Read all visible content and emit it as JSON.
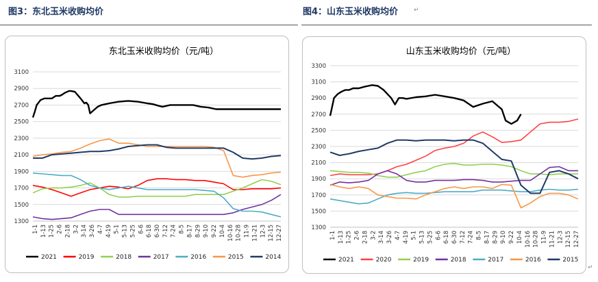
{
  "captions": {
    "left": "图3：东北玉米收购均价",
    "right": "图4：山东玉米收购均价",
    "return_mark": "↵"
  },
  "chart_data": [
    {
      "type": "line",
      "title": "东北玉米收购均价（元/吨）",
      "ylim": [
        1300,
        3100
      ],
      "yticks": [
        1300,
        1500,
        1700,
        1900,
        2100,
        2300,
        2500,
        2700,
        2900,
        3100
      ],
      "x_labels": [
        "1-1",
        "1-13",
        "1-25",
        "2-6",
        "2-18",
        "3-2",
        "3-14",
        "3-26",
        "4-7",
        "4-19",
        "5-1",
        "5-13",
        "5-25",
        "6-6",
        "6-18",
        "6-30",
        "7-12",
        "7-24",
        "8-5",
        "8-17",
        "8-29",
        "9-10",
        "9-22",
        "10-4",
        "10-16",
        "10-28",
        "11-9",
        "11-21",
        "12-3",
        "12-15",
        "12-27"
      ],
      "grid": true,
      "legend_position": "bottom",
      "series": [
        {
          "name": "2021",
          "color": "#000000",
          "width": 2.4,
          "x": [
            0,
            1,
            2,
            3,
            4,
            6,
            8,
            10,
            12,
            14,
            15,
            17,
            19,
            20,
            22,
            25,
            27,
            28,
            29,
            30,
            34,
            36,
            38,
            40,
            45,
            50,
            55,
            60,
            63,
            66,
            68,
            72,
            76,
            80,
            84,
            88,
            92,
            96,
            100,
            104,
            108,
            112,
            116,
            120,
            124,
            128,
            130
          ],
          "y": [
            2550,
            2620,
            2700,
            2730,
            2760,
            2780,
            2780,
            2780,
            2810,
            2810,
            2820,
            2850,
            2870,
            2870,
            2860,
            2780,
            2720,
            2730,
            2700,
            2600,
            2680,
            2700,
            2710,
            2720,
            2740,
            2750,
            2740,
            2720,
            2710,
            2690,
            2680,
            2700,
            2700,
            2700,
            2700,
            2680,
            2670,
            2650,
            2650,
            2650,
            2650,
            2650,
            2650,
            2650,
            2650,
            2650,
            2650
          ]
        },
        {
          "name": "2019",
          "color": "#ff0000",
          "width": 1.6,
          "x": [
            0,
            5,
            10,
            15,
            20,
            25,
            30,
            35,
            40,
            45,
            50,
            55,
            60,
            65,
            70,
            75,
            80,
            85,
            90,
            95,
            100,
            105,
            110,
            115,
            120,
            125,
            130
          ],
          "y": [
            1730,
            1710,
            1680,
            1640,
            1600,
            1640,
            1680,
            1700,
            1720,
            1710,
            1690,
            1730,
            1790,
            1810,
            1810,
            1800,
            1800,
            1790,
            1790,
            1770,
            1750,
            1680,
            1680,
            1690,
            1690,
            1690,
            1700
          ]
        },
        {
          "name": "2018",
          "color": "#92d050",
          "width": 1.6,
          "x": [
            0,
            5,
            10,
            15,
            20,
            25,
            30,
            35,
            40,
            45,
            50,
            55,
            60,
            65,
            70,
            75,
            80,
            85,
            90,
            95,
            100,
            105,
            110,
            115,
            120,
            125,
            130
          ],
          "y": [
            1640,
            1690,
            1700,
            1700,
            1710,
            1730,
            1760,
            1700,
            1620,
            1590,
            1590,
            1600,
            1600,
            1600,
            1600,
            1600,
            1600,
            1620,
            1620,
            1620,
            1620,
            1660,
            1700,
            1750,
            1800,
            1780,
            1740
          ]
        },
        {
          "name": "2017",
          "color": "#7030a0",
          "width": 1.6,
          "x": [
            0,
            5,
            10,
            15,
            20,
            25,
            30,
            35,
            40,
            45,
            50,
            55,
            60,
            65,
            70,
            75,
            80,
            85,
            90,
            95,
            100,
            105,
            110,
            115,
            120,
            125,
            130
          ],
          "y": [
            1350,
            1330,
            1320,
            1330,
            1340,
            1380,
            1420,
            1440,
            1440,
            1380,
            1380,
            1380,
            1380,
            1380,
            1380,
            1380,
            1380,
            1380,
            1380,
            1380,
            1380,
            1400,
            1440,
            1470,
            1500,
            1550,
            1620
          ]
        },
        {
          "name": "2016",
          "color": "#4bacc6",
          "width": 1.6,
          "x": [
            0,
            5,
            10,
            15,
            20,
            25,
            30,
            35,
            40,
            45,
            50,
            55,
            60,
            65,
            70,
            75,
            80,
            85,
            90,
            95,
            100,
            105,
            110,
            115,
            120,
            125,
            130
          ],
          "y": [
            1880,
            1870,
            1860,
            1850,
            1850,
            1800,
            1730,
            1700,
            1680,
            1700,
            1720,
            1700,
            1680,
            1680,
            1680,
            1680,
            1680,
            1680,
            1670,
            1660,
            1580,
            1450,
            1420,
            1420,
            1410,
            1380,
            1350
          ]
        },
        {
          "name": "2015",
          "color": "#f79646",
          "width": 1.6,
          "x": [
            0,
            5,
            10,
            15,
            20,
            25,
            30,
            35,
            40,
            45,
            50,
            55,
            60,
            65,
            70,
            75,
            80,
            85,
            90,
            95,
            100,
            105,
            110,
            115,
            120,
            125,
            130
          ],
          "y": [
            2080,
            2100,
            2110,
            2130,
            2140,
            2180,
            2230,
            2270,
            2290,
            2240,
            2240,
            2220,
            2200,
            2200,
            2200,
            2200,
            2200,
            2200,
            2200,
            2190,
            2150,
            1850,
            1830,
            1850,
            1860,
            1880,
            1890
          ]
        },
        {
          "name": "2014",
          "color": "#1f3864",
          "width": 2.0,
          "x": [
            0,
            5,
            10,
            15,
            20,
            25,
            30,
            35,
            40,
            45,
            50,
            55,
            60,
            65,
            70,
            75,
            80,
            85,
            90,
            95,
            100,
            105,
            110,
            115,
            120,
            125,
            130
          ],
          "y": [
            2060,
            2060,
            2100,
            2110,
            2120,
            2130,
            2140,
            2140,
            2150,
            2170,
            2200,
            2210,
            2220,
            2220,
            2190,
            2180,
            2180,
            2180,
            2180,
            2180,
            2180,
            2130,
            2060,
            2050,
            2060,
            2080,
            2090
          ]
        }
      ]
    },
    {
      "type": "line",
      "title": "山东玉米收购均价（元/吨）",
      "ylim": [
        1300,
        3300
      ],
      "yticks": [
        1300,
        1500,
        1700,
        1900,
        2100,
        2300,
        2500,
        2700,
        2900,
        3100,
        3300
      ],
      "x_labels": [
        "1-1",
        "1-13",
        "1-25",
        "2-6",
        "2-18",
        "3-2",
        "3-14",
        "3-26",
        "4-7",
        "4-19",
        "5-1",
        "5-13",
        "5-25",
        "6-6",
        "6-18",
        "6-30",
        "7-12",
        "7-24",
        "8-5",
        "8-17",
        "8-29",
        "9-10",
        "9-22",
        "10-4",
        "10-16",
        "10-28",
        "11-9",
        "11-21",
        "12-3",
        "12-15",
        "12-27"
      ],
      "grid": true,
      "legend_position": "bottom",
      "series": [
        {
          "name": "2021",
          "color": "#000000",
          "width": 2.4,
          "x": [
            0,
            2,
            4,
            6,
            8,
            10,
            12,
            15,
            18,
            20,
            22,
            25,
            28,
            30,
            32,
            34,
            36,
            38,
            40,
            45,
            50,
            55,
            60,
            65,
            70,
            75,
            80,
            85,
            88,
            90,
            92,
            95,
            98,
            100
          ],
          "y": [
            2680,
            2900,
            2950,
            2980,
            3000,
            3000,
            3020,
            3020,
            3040,
            3050,
            3060,
            3050,
            3000,
            2950,
            2900,
            2820,
            2900,
            2900,
            2890,
            2910,
            2920,
            2940,
            2920,
            2900,
            2870,
            2790,
            2830,
            2860,
            2800,
            2760,
            2620,
            2580,
            2620,
            2700
          ]
        },
        {
          "name": "2020",
          "color": "#ff4040",
          "width": 1.6,
          "x": [
            0,
            5,
            10,
            15,
            20,
            25,
            30,
            35,
            40,
            45,
            50,
            55,
            60,
            65,
            70,
            75,
            80,
            85,
            90,
            95,
            100,
            105,
            110,
            115,
            120,
            125,
            130
          ],
          "y": [
            1940,
            1960,
            1950,
            1950,
            1950,
            1960,
            2000,
            2050,
            2080,
            2130,
            2180,
            2250,
            2280,
            2300,
            2340,
            2430,
            2480,
            2420,
            2350,
            2360,
            2380,
            2480,
            2580,
            2600,
            2600,
            2610,
            2640
          ]
        },
        {
          "name": "2019",
          "color": "#92d050",
          "width": 1.6,
          "x": [
            0,
            5,
            10,
            15,
            20,
            25,
            30,
            35,
            40,
            45,
            50,
            55,
            60,
            65,
            70,
            75,
            80,
            85,
            90,
            95,
            100,
            105,
            110,
            115,
            120,
            125,
            130
          ],
          "y": [
            2000,
            1990,
            1980,
            1980,
            1970,
            1940,
            1920,
            1920,
            1950,
            1980,
            2000,
            2050,
            2080,
            2090,
            2070,
            2070,
            2080,
            2080,
            2070,
            2050,
            2000,
            1960,
            1960,
            1950,
            1960,
            1960,
            1960
          ]
        },
        {
          "name": "2018",
          "color": "#7030a0",
          "width": 1.6,
          "x": [
            0,
            5,
            10,
            15,
            20,
            25,
            30,
            35,
            40,
            45,
            50,
            55,
            60,
            65,
            70,
            75,
            80,
            85,
            90,
            95,
            100,
            105,
            110,
            115,
            120,
            125,
            130
          ],
          "y": [
            1820,
            1860,
            1850,
            1860,
            1880,
            1960,
            2000,
            1960,
            1880,
            1860,
            1860,
            1880,
            1880,
            1880,
            1890,
            1890,
            1880,
            1860,
            1860,
            1870,
            1880,
            1880,
            1960,
            2040,
            2050,
            2000,
            2000
          ]
        },
        {
          "name": "2017",
          "color": "#4bacc6",
          "width": 1.6,
          "x": [
            0,
            5,
            10,
            15,
            20,
            25,
            30,
            35,
            40,
            45,
            50,
            55,
            60,
            65,
            70,
            75,
            80,
            85,
            90,
            95,
            100,
            105,
            110,
            115,
            120,
            125,
            130
          ],
          "y": [
            1650,
            1630,
            1610,
            1590,
            1600,
            1650,
            1700,
            1720,
            1730,
            1720,
            1720,
            1730,
            1740,
            1740,
            1740,
            1740,
            1760,
            1760,
            1760,
            1750,
            1740,
            1740,
            1760,
            1770,
            1760,
            1760,
            1770
          ]
        },
        {
          "name": "2016",
          "color": "#f79646",
          "width": 1.6,
          "x": [
            0,
            5,
            10,
            15,
            20,
            25,
            30,
            35,
            40,
            45,
            50,
            55,
            60,
            65,
            70,
            75,
            80,
            85,
            90,
            95,
            100,
            105,
            110,
            115,
            120,
            125,
            130
          ],
          "y": [
            1830,
            1800,
            1780,
            1800,
            1780,
            1700,
            1680,
            1660,
            1660,
            1650,
            1700,
            1740,
            1780,
            1800,
            1780,
            1800,
            1800,
            1780,
            1830,
            1820,
            1540,
            1600,
            1680,
            1720,
            1720,
            1700,
            1650
          ]
        },
        {
          "name": "2015",
          "color": "#1f3864",
          "width": 2.0,
          "x": [
            0,
            5,
            10,
            15,
            20,
            25,
            30,
            35,
            40,
            45,
            50,
            55,
            60,
            65,
            70,
            75,
            80,
            85,
            90,
            95,
            100,
            105,
            110,
            115,
            120,
            125,
            130
          ],
          "y": [
            2230,
            2190,
            2210,
            2240,
            2260,
            2280,
            2340,
            2380,
            2380,
            2370,
            2380,
            2380,
            2380,
            2370,
            2380,
            2380,
            2340,
            2240,
            2140,
            2120,
            1820,
            1720,
            1720,
            1980,
            2000,
            1960,
            1900
          ]
        }
      ]
    }
  ]
}
